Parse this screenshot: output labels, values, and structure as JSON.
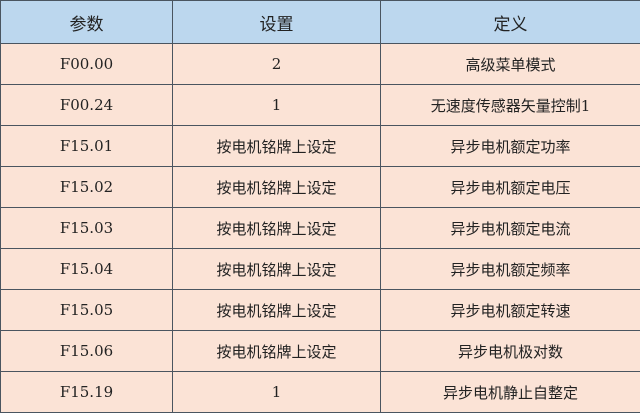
{
  "table": {
    "headers": [
      "参数",
      "设置",
      "定义"
    ],
    "rows": [
      [
        "F00.00",
        "2",
        "高级菜单模式"
      ],
      [
        "F00.24",
        "1",
        "无速度传感器矢量控制1"
      ],
      [
        "F15.01",
        "按电机铭牌上设定",
        "异步电机额定功率"
      ],
      [
        "F15.02",
        "按电机铭牌上设定",
        "异步电机额定电压"
      ],
      [
        "F15.03",
        "按电机铭牌上设定",
        "异步电机额定电流"
      ],
      [
        "F15.04",
        "按电机铭牌上设定",
        "异步电机额定频率"
      ],
      [
        "F15.05",
        "按电机铭牌上设定",
        "异步电机额定转速"
      ],
      [
        "F15.06",
        "按电机铭牌上设定",
        "异步电机极对数"
      ],
      [
        "F15.19",
        "1",
        "异步电机静止自整定"
      ]
    ],
    "colors": {
      "header_bg": "#bcd7ee",
      "row_bg": "#fbe3d6",
      "border": "#4a5560"
    }
  }
}
